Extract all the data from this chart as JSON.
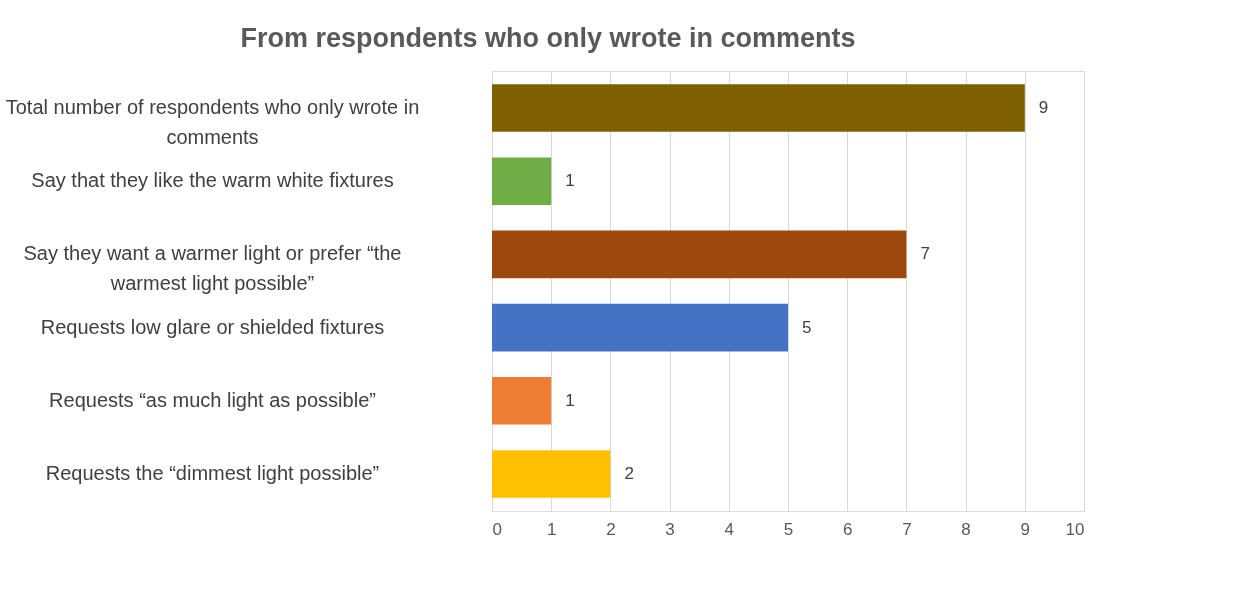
{
  "chart_data": {
    "type": "bar",
    "orientation": "horizontal",
    "title": "From respondents who only wrote in comments",
    "categories": [
      "Total number of respondents who only wrote in comments",
      "Say that they like the warm white fixtures",
      "Say they want a warmer light or prefer “the warmest light possible”",
      "Requests low glare or shielded fixtures",
      "Requests “as much light as possible”",
      "Requests the “dimmest light possible”"
    ],
    "values": [
      9,
      1,
      7,
      5,
      1,
      2
    ],
    "colors": [
      "#7f6000",
      "#70ad47",
      "#9e480e",
      "#4472c4",
      "#ed7d31",
      "#ffc000"
    ],
    "xlim": [
      0,
      10
    ],
    "xticks": [
      0,
      1,
      2,
      3,
      4,
      5,
      6,
      7,
      8,
      9,
      10
    ],
    "grid": "x",
    "data_labels": true,
    "legend": false
  }
}
